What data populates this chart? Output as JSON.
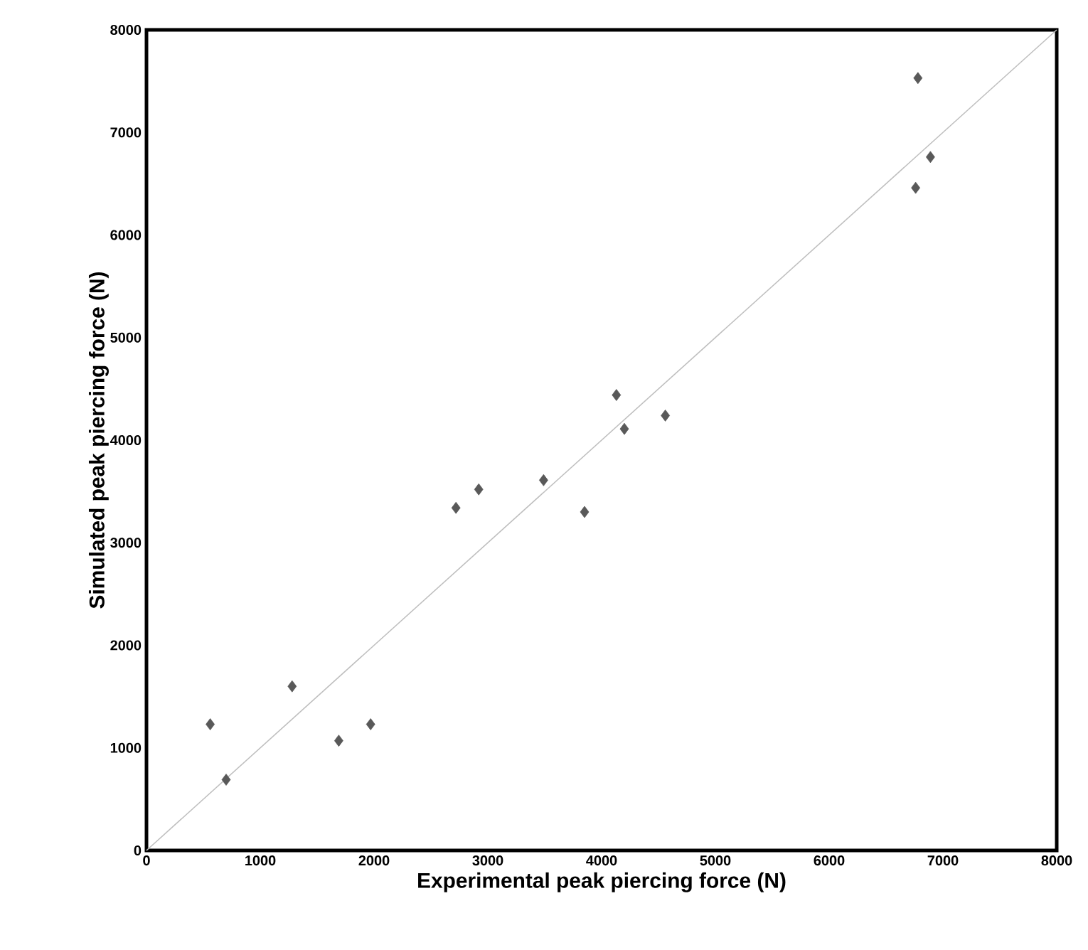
{
  "chart_data": {
    "type": "scatter",
    "xlabel": "Experimental peak piercing force (N)",
    "ylabel": "Simulated peak piercing force (N)",
    "xlim": [
      0,
      8000
    ],
    "ylim": [
      0,
      8000
    ],
    "xticks": [
      0,
      1000,
      2000,
      3000,
      4000,
      5000,
      6000,
      7000,
      8000
    ],
    "yticks": [
      0,
      1000,
      2000,
      3000,
      4000,
      5000,
      6000,
      7000,
      8000
    ],
    "marker": "diamond",
    "series": [
      {
        "color": "#595959",
        "x": [
          560,
          700,
          1280,
          1690,
          1970,
          2720,
          2920,
          3490,
          3850,
          4130,
          4200,
          4560,
          6780,
          6890,
          6760
        ],
        "values": [
          1230,
          690,
          1600,
          1070,
          1230,
          3340,
          3520,
          3610,
          3300,
          4440,
          4110,
          4240,
          7530,
          6760,
          6460
        ]
      },
      {
        "type": "line",
        "marker": "none",
        "color": "#bfbfbf",
        "x": [
          0,
          8000
        ],
        "values": [
          0,
          8000
        ]
      }
    ]
  }
}
